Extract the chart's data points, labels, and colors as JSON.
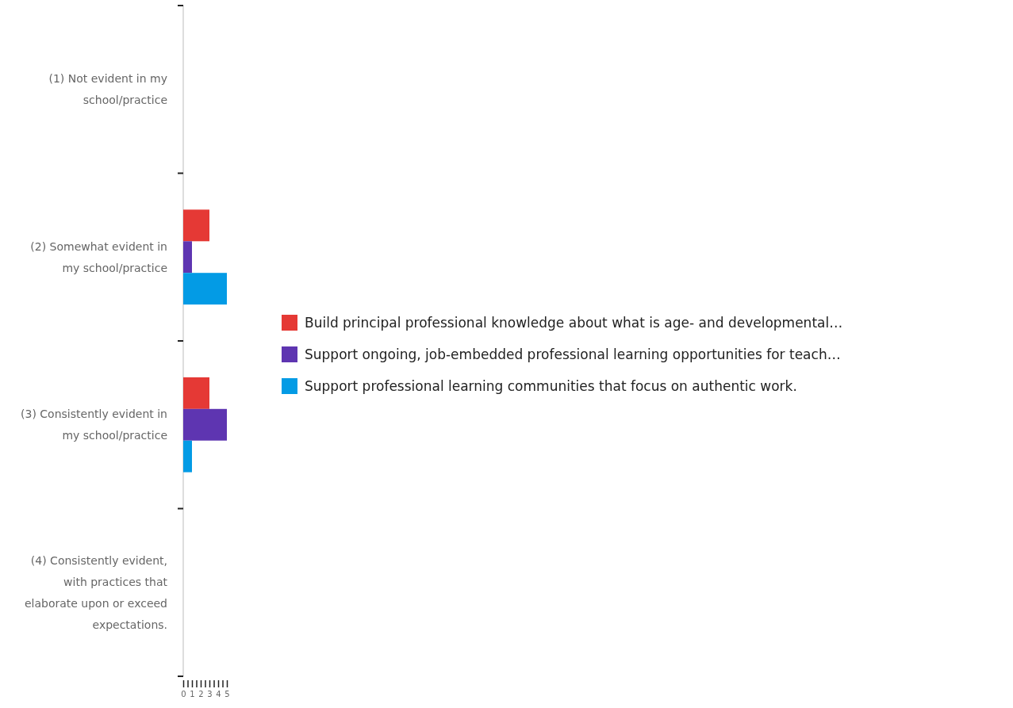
{
  "chart_data": {
    "type": "bar",
    "orientation": "horizontal",
    "categories": [
      "(1) Not evident in my school/practice",
      "(2) Somewhat evident in my school/practice",
      "(3) Consistently evident in my school/practice",
      "(4) Consistently evident, with practices that elaborate upon or exceed expectations."
    ],
    "series": [
      {
        "name": "Build principal professional knowledge about what is age- and developmental…",
        "color": "#e53935",
        "values": [
          null,
          3,
          3,
          null
        ]
      },
      {
        "name": "Support ongoing, job-embedded professional learning opportunities for teach…",
        "color": "#5e35b1",
        "values": [
          null,
          1,
          5,
          null
        ]
      },
      {
        "name": "Support professional learning communities that focus on authentic work.",
        "color": "#039be5",
        "values": [
          null,
          5,
          1,
          null
        ]
      }
    ],
    "xlim": [
      0,
      5
    ],
    "xticks": [
      0,
      {
        "value": 0.5,
        "label": null
      },
      1,
      {
        "value": 1.5,
        "label": null
      },
      2,
      {
        "value": 2.5,
        "label": null
      },
      3,
      {
        "value": 3.5,
        "label": null
      },
      4,
      {
        "value": 4.5,
        "label": null
      },
      5
    ],
    "grid": false,
    "legend": "right"
  }
}
